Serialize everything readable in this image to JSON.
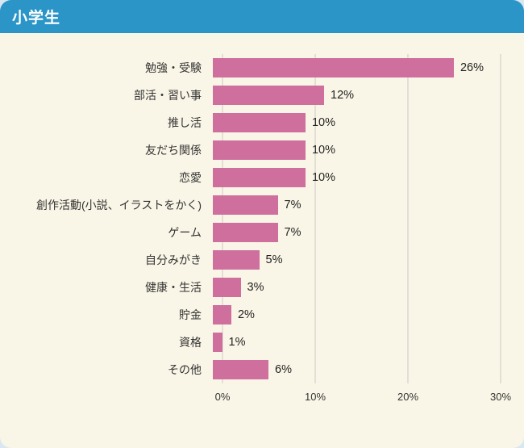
{
  "header": {
    "title": "小学生"
  },
  "chart_data": {
    "type": "bar",
    "orientation": "horizontal",
    "title": "小学生",
    "categories": [
      "勉強・受験",
      "部活・習い事",
      "推し活",
      "友だち関係",
      "恋愛",
      "創作活動(小説、イラストをかく)",
      "ゲーム",
      "自分みがき",
      "健康・生活",
      "貯金",
      "資格",
      "その他"
    ],
    "values": [
      26,
      12,
      10,
      10,
      10,
      7,
      7,
      5,
      3,
      2,
      1,
      6
    ],
    "value_labels": [
      "26%",
      "12%",
      "10%",
      "10%",
      "10%",
      "7%",
      "7%",
      "5%",
      "3%",
      "2%",
      "1%",
      "6%"
    ],
    "x_ticks": [
      "0%",
      "10%",
      "20%",
      "30%"
    ],
    "xlim": [
      0,
      30
    ],
    "grid": true,
    "legend": "none",
    "colors": {
      "bar": "#cf6f9e",
      "header_bg": "#2b95c8",
      "header_text": "#ffffff",
      "background": "#faf6e7",
      "gridline": "#c9c9c4",
      "text": "#333333"
    }
  }
}
